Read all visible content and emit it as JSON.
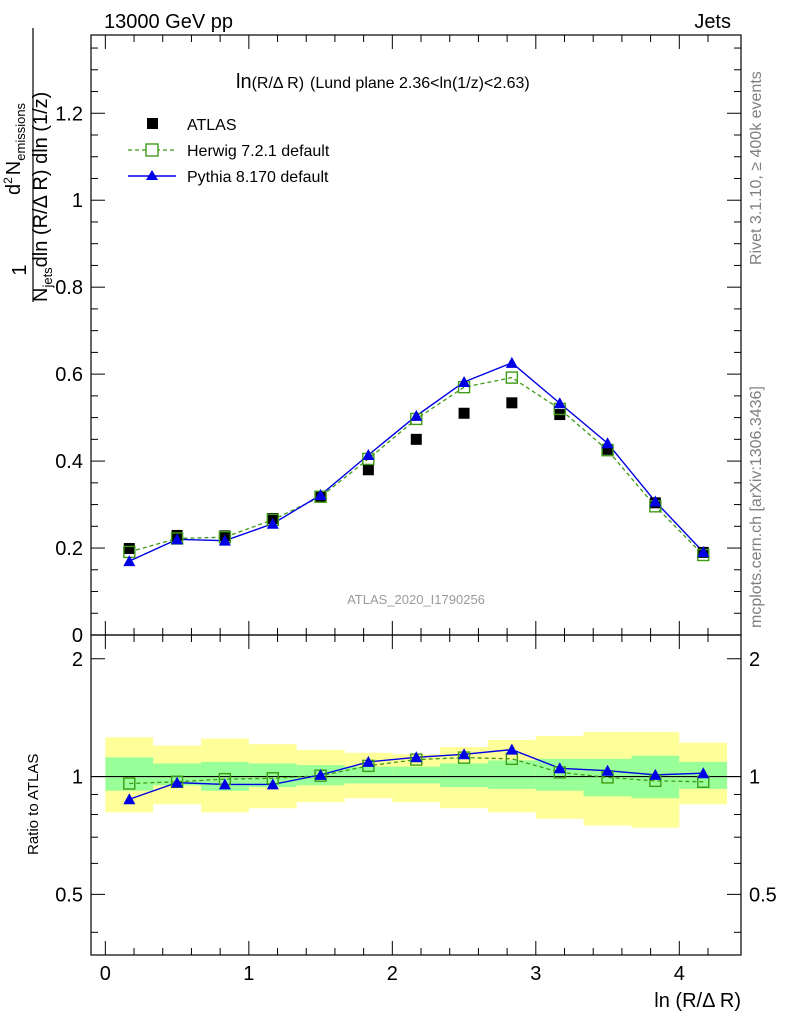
{
  "header": {
    "energy_label": "13000 GeV pp",
    "process_label": "Jets"
  },
  "side_labels": {
    "rivet": "Rivet 3.1.10, ≥ 400k events",
    "mcplots": "mcplots.cern.ch [arXiv:1306.3436]"
  },
  "chart_data": [
    {
      "type": "scatter",
      "title": "ln(R/Δ R) (Lund plane 2.36<ln(1/z)<2.63)",
      "title_main": "ln",
      "title_sub": "(R/Δ R)",
      "title_rest": "(Lund plane 2.36<ln(1/z)<2.63)",
      "watermark": "ATLAS_2020_I1790256",
      "ylabel_parts": {
        "one": "1",
        "n": "N",
        "jets": "jets",
        "dln_r": "dln (R/Δ R) dln (1/z)",
        "d2": "d",
        "two": "2",
        "nn": "N",
        "emissions": "emissions"
      },
      "xlim": [
        -0.1,
        4.43
      ],
      "ylim": [
        0,
        1.38
      ],
      "yticks": [
        0,
        0.2,
        0.4,
        0.6,
        0.8,
        1,
        1.2
      ],
      "ytick_labels": [
        "0",
        "0.2",
        "0.4",
        "0.6",
        "0.8",
        "1",
        "1.2"
      ],
      "legend": {
        "position": "top-left"
      },
      "series": [
        {
          "name": "ATLAS",
          "marker": "square-filled",
          "color": "#000000",
          "x": [
            0.167,
            0.5,
            0.833,
            1.167,
            1.5,
            1.833,
            2.167,
            2.5,
            2.833,
            3.167,
            3.5,
            3.833,
            4.167
          ],
          "y": [
            0.199,
            0.229,
            0.228,
            0.268,
            0.318,
            0.38,
            0.45,
            0.51,
            0.534,
            0.507,
            0.427,
            0.304,
            0.19
          ]
        },
        {
          "name": "Herwig 7.2.1 default",
          "marker": "square-open",
          "line": "dashed",
          "color": "#3d9b16",
          "x": [
            0.167,
            0.5,
            0.833,
            1.167,
            1.5,
            1.833,
            2.167,
            2.5,
            2.833,
            3.167,
            3.5,
            3.833,
            4.167
          ],
          "y": [
            0.191,
            0.222,
            0.225,
            0.265,
            0.318,
            0.405,
            0.497,
            0.57,
            0.592,
            0.52,
            0.425,
            0.296,
            0.184
          ]
        },
        {
          "name": "Pythia 8.170 default",
          "marker": "triangle-filled",
          "line": "solid",
          "color": "#0000e6",
          "x": [
            0.167,
            0.5,
            0.833,
            1.167,
            1.5,
            1.833,
            2.167,
            2.5,
            2.833,
            3.167,
            3.5,
            3.833,
            4.167
          ],
          "y": [
            0.17,
            0.22,
            0.217,
            0.256,
            0.322,
            0.414,
            0.504,
            0.582,
            0.626,
            0.533,
            0.441,
            0.307,
            0.191
          ]
        }
      ]
    },
    {
      "type": "scatter",
      "ylabel": "Ratio to ATLAS",
      "xlabel": "ln (R/Δ R)",
      "xlim": [
        -0.1,
        4.43
      ],
      "ylim": [
        0.35,
        2.3
      ],
      "xticks": [
        0,
        1,
        2,
        3,
        4
      ],
      "xtick_labels": [
        "0",
        "1",
        "2",
        "3",
        "4"
      ],
      "yticks": [
        0.5,
        1,
        2
      ],
      "ytick_labels": [
        "0.5",
        "1",
        "2"
      ],
      "bands": {
        "bin_edges": [
          0.0,
          0.333,
          0.667,
          1.0,
          1.333,
          1.667,
          2.0,
          2.333,
          2.667,
          3.0,
          3.333,
          3.667,
          4.0,
          4.333
        ],
        "inner_color": "#99ff99",
        "outer_color": "#ffff99",
        "inner_lo": [
          0.92,
          0.95,
          0.92,
          0.94,
          0.95,
          0.96,
          0.96,
          0.94,
          0.93,
          0.92,
          0.89,
          0.88,
          0.93
        ],
        "inner_hi": [
          1.12,
          1.08,
          1.09,
          1.08,
          1.07,
          1.06,
          1.06,
          1.08,
          1.1,
          1.11,
          1.11,
          1.13,
          1.09
        ],
        "outer_lo": [
          0.81,
          0.85,
          0.81,
          0.83,
          0.86,
          0.88,
          0.86,
          0.83,
          0.81,
          0.78,
          0.75,
          0.74,
          0.85
        ],
        "outer_hi": [
          1.26,
          1.2,
          1.25,
          1.21,
          1.17,
          1.15,
          1.14,
          1.19,
          1.24,
          1.27,
          1.3,
          1.3,
          1.22
        ]
      },
      "series": [
        {
          "name": "Herwig 7.2.1 default",
          "color": "#3d9b16",
          "x": [
            0.167,
            0.5,
            0.833,
            1.167,
            1.5,
            1.833,
            2.167,
            2.5,
            2.833,
            3.167,
            3.5,
            3.833,
            4.167
          ],
          "y": [
            0.96,
            0.97,
            0.985,
            0.99,
            1.005,
            1.065,
            1.105,
            1.118,
            1.11,
            1.025,
            0.995,
            0.975,
            0.97
          ]
        },
        {
          "name": "Pythia 8.170 default",
          "color": "#0000e6",
          "x": [
            0.167,
            0.5,
            0.833,
            1.167,
            1.5,
            1.833,
            2.167,
            2.5,
            2.833,
            3.167,
            3.5,
            3.833,
            4.167
          ],
          "y": [
            0.875,
            0.965,
            0.955,
            0.955,
            1.01,
            1.09,
            1.12,
            1.14,
            1.172,
            1.05,
            1.035,
            1.01,
            1.02
          ]
        }
      ]
    }
  ]
}
